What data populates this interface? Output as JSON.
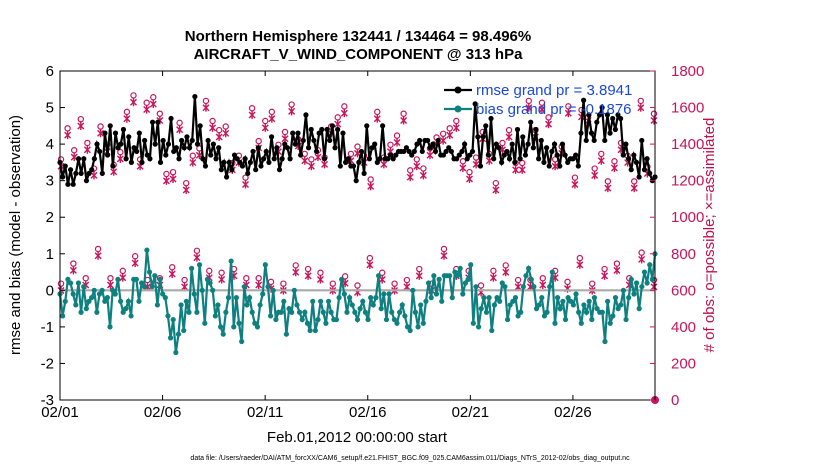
{
  "chart_data": {
    "type": "line",
    "title_line1": "Northern Hemisphere 132441 / 134464 = 98.496%",
    "title_line2": "AIRCRAFT_V_WIND_COMPONENT @ 313 hPa",
    "xlabel": "Feb.01,2012 00:00:00 start",
    "ylabel_left": "rmse and bias (model - observation)",
    "ylabel_right": "# of obs: o=possible; ×=assimilated",
    "footer": "data file: /Users/raeder/DAI/ATM_forcXX/CAM6_setup/f.e21.FHIST_BGC.f09_025.CAM6assim.011/Diags_NTrS_2012-02/obs_diag_output.nc",
    "xlim": [
      1,
      30
    ],
    "ylim_left": [
      -3,
      6
    ],
    "ylim_right": [
      0,
      1800
    ],
    "x_ticks": [
      1,
      6,
      11,
      16,
      21,
      26
    ],
    "x_tick_labels": [
      "02/01",
      "02/06",
      "02/11",
      "02/16",
      "02/21",
      "02/26"
    ],
    "y_ticks_left": [
      -3,
      -2,
      -1,
      0,
      1,
      2,
      3,
      4,
      5,
      6
    ],
    "y_ticks_right": [
      0,
      200,
      400,
      600,
      800,
      1000,
      1200,
      1400,
      1600,
      1800
    ],
    "legend": [
      {
        "label": "rmse grand pr = 3.8941",
        "color": "#000000"
      },
      {
        "label": "bias grand pr = -0.1876",
        "color": "#0e8080"
      }
    ],
    "series": [
      {
        "name": "rmse",
        "color": "#000000",
        "values": [
          3.5,
          3.1,
          3.4,
          2.9,
          3.3,
          2.9,
          3.2,
          3.6,
          3.2,
          3.6,
          3.0,
          3.2,
          3.3,
          3.6,
          4.0,
          3.8,
          3.2,
          4.3,
          3.7,
          4.5,
          3.4,
          4.3,
          3.9,
          4.0,
          4.4,
          3.6,
          4.2,
          3.5,
          3.9,
          3.8,
          4.3,
          3.5,
          4.1,
          3.7,
          3.6,
          4.6,
          4.0,
          4.6,
          3.5,
          4.1,
          3.7,
          4.0,
          4.7,
          3.8,
          3.9,
          3.6,
          4.1,
          3.9,
          4.2,
          3.9,
          4.1,
          5.3,
          4.0,
          4.5,
          3.6,
          3.4,
          4.1,
          3.7,
          4.0,
          3.6,
          3.9,
          3.3,
          3.5,
          3.1,
          3.5,
          3.3,
          3.7,
          3.6,
          3.5,
          3.4,
          3.6,
          3.2,
          3.5,
          3.8,
          3.3,
          3.9,
          3.4,
          3.6,
          3.8,
          3.5,
          4.2,
          3.6,
          3.9,
          3.3,
          3.6,
          4.0,
          3.9,
          3.6,
          4.3,
          4.0,
          4.3,
          3.7,
          4.1,
          4.8,
          3.9,
          4.4,
          4.1,
          3.8,
          4.3,
          4.4,
          3.6,
          4.4,
          4.1,
          4.5,
          3.9,
          4.4,
          3.4,
          4.3,
          3.5,
          3.6,
          3.4,
          3.4,
          3.0,
          3.5,
          3.8,
          3.2,
          4.5,
          3.6,
          3.9,
          4.0,
          3.5,
          3.6,
          4.5,
          3.6,
          3.6,
          3.7,
          3.6,
          3.7,
          3.8,
          3.8,
          3.8,
          3.9,
          3.8,
          3.7,
          3.8,
          4.0,
          4.1,
          3.8,
          4.1,
          4.1,
          3.9,
          4.0,
          3.8,
          4.1,
          3.7,
          3.7,
          3.8,
          3.9,
          3.8,
          3.6,
          3.6,
          3.7,
          3.8,
          4.0,
          3.6,
          3.7,
          3.8,
          5.1,
          4.2,
          3.4,
          4.2,
          4.5,
          3.7,
          4.7,
          3.6,
          4.0,
          3.9,
          3.5,
          3.7,
          3.8,
          3.6,
          4.0,
          3.5,
          4.4,
          3.6,
          4.2,
          3.7,
          4.0,
          4.6,
          3.9,
          4.4,
          3.6,
          4.1,
          3.5,
          3.9,
          3.4,
          3.8,
          4.0,
          3.7,
          3.4,
          4.0,
          3.7,
          3.5,
          3.6,
          3.6,
          3.7,
          3.4,
          4.3,
          5.2,
          4.1,
          4.8,
          4.3,
          4.1,
          4.6,
          4.8,
          5.0,
          4.1,
          4.8,
          4.3,
          4.7,
          4.4,
          4.8,
          4.7,
          3.7,
          4.0,
          3.6,
          3.3,
          3.7,
          3.5,
          3.1,
          4.1,
          3.3,
          3.6,
          3.2,
          3.0,
          3.1
        ],
        "_note": "values sampled every 6 hours from 02/01"
      },
      {
        "name": "bias",
        "color": "#0e8080",
        "values": [
          -0.1,
          -0.7,
          -0.3,
          0.3,
          0.2,
          -0.1,
          -0.4,
          0.2,
          -0.6,
          0.1,
          -0.5,
          -0.3,
          -0.2,
          0.0,
          -0.6,
          -0.1,
          0.0,
          -0.3,
          -0.2,
          -1.0,
          0.0,
          -0.1,
          0.3,
          -0.3,
          -0.6,
          -0.5,
          -0.3,
          -0.7,
          0.3,
          0.3,
          -0.3,
          0.2,
          0.1,
          1.1,
          0.5,
          0.1,
          0.4,
          -0.4,
          0.3,
          -0.1,
          -0.2,
          -0.7,
          -1.3,
          -0.8,
          -1.7,
          -1.2,
          -0.4,
          -1.1,
          -0.3,
          -0.6,
          0.6,
          -0.1,
          -0.6,
          0.7,
          0.0,
          -0.9,
          0.3,
          0.2,
          0.0,
          -0.7,
          -0.4,
          -1.0,
          -1.2,
          -0.6,
          -0.2,
          0.8,
          -1.0,
          -0.2,
          -0.9,
          -1.4,
          0.1,
          -0.4,
          -0.2,
          -0.6,
          -0.9,
          -1.0,
          -0.4,
          -0.1,
          0.7,
          0.1,
          -0.7,
          0.0,
          -0.8,
          -0.6,
          -0.6,
          -0.3,
          -1.2,
          -0.5,
          -0.6,
          0.0,
          -0.4,
          -0.6,
          -0.8,
          -0.6,
          -0.9,
          -1.1,
          -0.3,
          -1.1,
          -0.8,
          -0.3,
          -0.6,
          -0.9,
          -0.3,
          -0.6,
          -0.8,
          -0.8,
          -0.2,
          0.3,
          -0.1,
          -0.6,
          -0.2,
          -0.4,
          -0.6,
          -0.8,
          -0.5,
          -0.3,
          -0.6,
          -0.8,
          -0.2,
          -0.4,
          -0.2,
          0.4,
          -0.5,
          -0.1,
          -0.8,
          -0.1,
          -0.6,
          -0.8,
          -0.9,
          -0.6,
          -0.4,
          -0.7,
          -1.0,
          -1.1,
          0.0,
          -0.6,
          -1.0,
          -0.4,
          -0.9,
          -0.3,
          0.2,
          -0.2,
          0.4,
          -0.1,
          0.3,
          -0.3,
          0.4,
          0.4,
          0.4,
          -0.2,
          0.5,
          0.4,
          0.6,
          -0.1,
          0.2,
          0.3,
          0.7,
          -0.9,
          0.1,
          -1.0,
          -0.5,
          -0.2,
          -0.6,
          -0.2,
          -1.1,
          -0.4,
          -0.2,
          -0.3,
          0.2,
          0.1,
          -0.8,
          -0.4,
          -0.3,
          -0.2,
          -0.7,
          -0.6,
          0.1,
          0.4,
          0.6,
          0.3,
          0.1,
          -0.5,
          -0.4,
          -0.2,
          -0.7,
          -0.6,
          0.1,
          0.5,
          -0.9,
          -0.2,
          -0.5,
          -0.3,
          -0.8,
          -0.2,
          -0.3,
          -0.4,
          -0.1,
          -0.6,
          -0.9,
          -0.4,
          -0.6,
          -0.3,
          -0.8,
          -0.2,
          -0.5,
          -0.6,
          -0.6,
          -1.4,
          -0.3,
          -0.9,
          -0.7,
          -0.2,
          -0.5,
          -0.4,
          0.0,
          -0.8,
          -0.2,
          0.3,
          -0.1,
          0.2,
          -0.5,
          0.1,
          0.5,
          0.2,
          0.7,
          0.3,
          1.0
        ]
      }
    ],
    "obs_possible": [
      1300,
      1470,
      1350,
      1520,
      1390,
      1250,
      1480,
      1380,
      1270,
      1340,
      1560,
      1650,
      1300,
      1610,
      1640,
      1550,
      1220,
      1230,
      1500,
      1170,
      1320,
      1360,
      1620,
      1510,
      1460,
      1480,
      1280,
      1320,
      1200,
      1580,
      1400,
      1510,
      1560,
      1380,
      1450,
      1600,
      1410,
      1330,
      1300,
      1350,
      1310,
      1480,
      1530,
      1590,
      1330,
      1370,
      1320,
      1190,
      1560,
      1310,
      1380,
      1430,
      1550,
      1240,
      1300,
      1250,
      1360,
      1420,
      1440,
      1470,
      1510,
      1290,
      1230,
      1310,
      1450,
      1330,
      1170,
      1390,
      1460,
      1280,
      1280,
      1620,
      1460,
      1610,
      1530,
      1300,
      1370,
      1590,
      1200,
      1570,
      1530,
      1250,
      1330,
      1180,
      1290,
      1390,
      1320,
      1180,
      1620,
      1260,
      1550
    ],
    "obs_assimilated": [
      1290,
      1460,
      1340,
      1510,
      1380,
      1240,
      1470,
      1370,
      1260,
      1330,
      1550,
      1640,
      1290,
      1600,
      1630,
      1540,
      1210,
      1220,
      1490,
      1160,
      1310,
      1350,
      1610,
      1500,
      1450,
      1470,
      1270,
      1310,
      1190,
      1570,
      1390,
      1500,
      1550,
      1370,
      1440,
      1590,
      1400,
      1320,
      1290,
      1340,
      1300,
      1470,
      1520,
      1580,
      1320,
      1360,
      1310,
      1180,
      1550,
      1300,
      1370,
      1420,
      1540,
      1230,
      1290,
      1240,
      1350,
      1410,
      1430,
      1460,
      1500,
      1280,
      1220,
      1300,
      1440,
      1320,
      1160,
      1380,
      1450,
      1270,
      1270,
      1610,
      1450,
      1600,
      1520,
      1290,
      1360,
      1580,
      1190,
      1560,
      1520,
      1240,
      1320,
      1170,
      1280,
      1380,
      1310,
      1170,
      1610,
      1250,
      1540
    ],
    "obs_low_possible": [
      620,
      730,
      650,
      810,
      650,
      690,
      770,
      640,
      650,
      710,
      640,
      800,
      690,
      680,
      700,
      650,
      650,
      630,
      620,
      720,
      700,
      680,
      620,
      660,
      610,
      760,
      680,
      620,
      640,
      700,
      620,
      810,
      700,
      690,
      610,
      690,
      720,
      640,
      640,
      650,
      690,
      630,
      760,
      620,
      700,
      730,
      650,
      790,
      640
    ],
    "obs_low_assimilated": [
      610,
      720,
      640,
      800,
      640,
      680,
      760,
      630,
      640,
      700,
      630,
      790,
      680,
      670,
      690,
      640,
      640,
      620,
      610,
      710,
      690,
      670,
      610,
      650,
      600,
      750,
      670,
      610,
      630,
      690,
      610,
      800,
      690,
      680,
      600,
      680,
      710,
      630,
      630,
      640,
      680,
      620,
      750,
      610,
      690,
      720,
      640,
      780,
      630
    ],
    "obs_end_marker": 0
  }
}
